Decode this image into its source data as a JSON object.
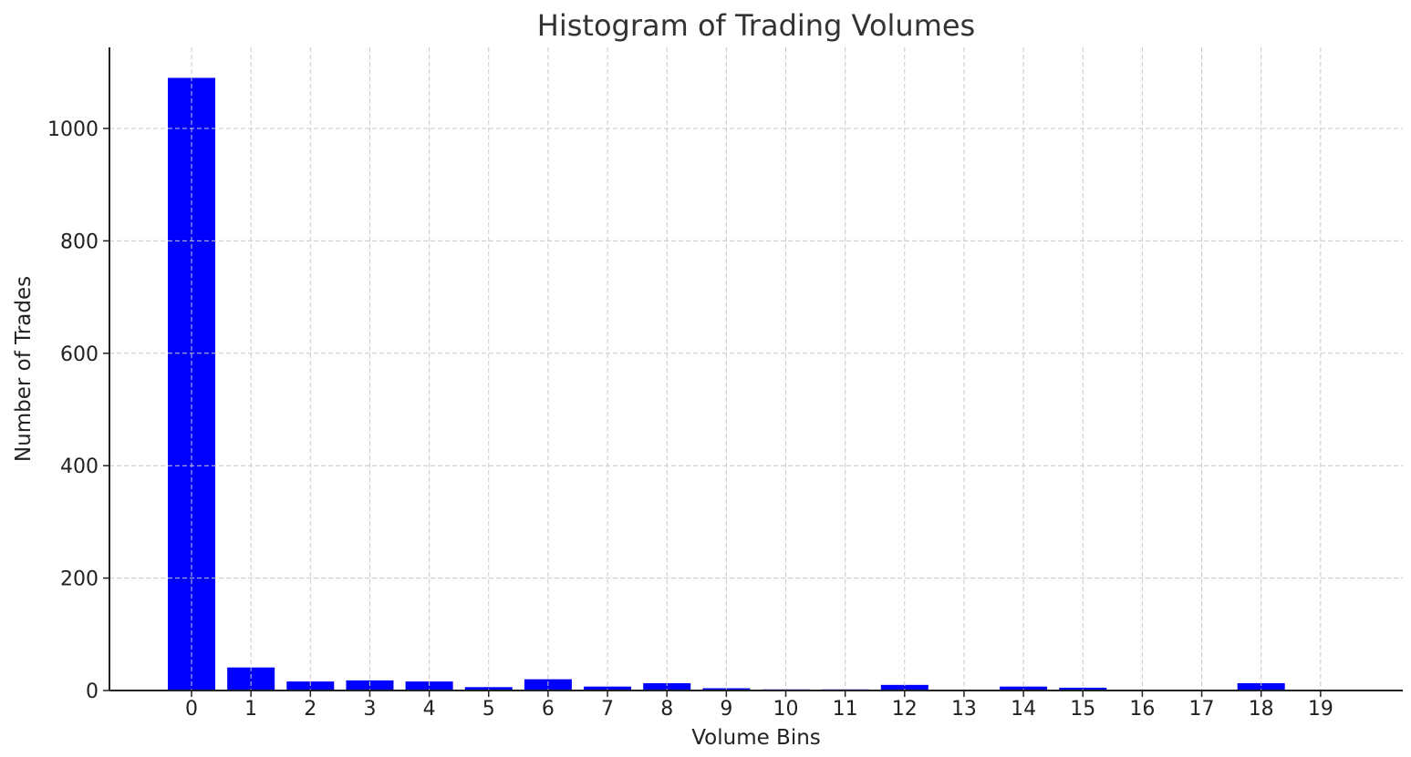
{
  "chart_data": {
    "type": "bar",
    "title": "Histogram of Trading Volumes",
    "xlabel": "Volume Bins",
    "ylabel": "Number of Trades",
    "categories": [
      "0",
      "1",
      "2",
      "3",
      "4",
      "5",
      "6",
      "7",
      "8",
      "9",
      "10",
      "11",
      "12",
      "13",
      "14",
      "15",
      "16",
      "17",
      "18",
      "19"
    ],
    "values": [
      1090,
      41,
      16,
      18,
      16,
      6,
      20,
      7,
      13,
      4,
      2,
      2,
      10,
      0,
      7,
      5,
      0,
      0,
      13,
      0
    ],
    "y_ticks": [
      "0",
      "200",
      "400",
      "600",
      "800",
      "1000"
    ],
    "ylim": [
      0,
      1150
    ],
    "grid": true,
    "bar_color": "#0000ff"
  }
}
